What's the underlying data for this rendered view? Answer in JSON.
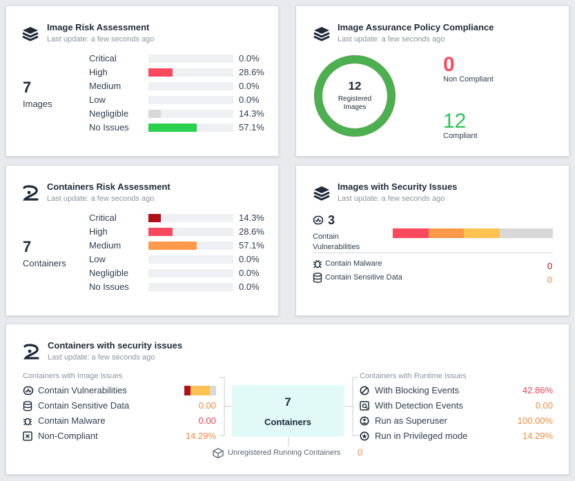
{
  "image_risk": {
    "title": "Image Risk Assessment",
    "subtitle": "Last update: a few seconds ago",
    "total": "7",
    "total_label": "Images",
    "rows": [
      {
        "label": "Critical",
        "pct": "0.0%",
        "value": 0.0,
        "color": "#b30f1b"
      },
      {
        "label": "High",
        "pct": "28.6%",
        "value": 28.6,
        "color": "#f94a5d"
      },
      {
        "label": "Medium",
        "pct": "0.0%",
        "value": 0.0,
        "color": "#ff9a4d"
      },
      {
        "label": "Low",
        "pct": "0.0%",
        "value": 0.0,
        "color": "#ffc353"
      },
      {
        "label": "Negligible",
        "pct": "14.3%",
        "value": 14.3,
        "color": "#d8d8d8"
      },
      {
        "label": "No Issues",
        "pct": "57.1%",
        "value": 57.1,
        "color": "#2cd04f"
      }
    ]
  },
  "policy": {
    "title": "Image Assurance Policy Compliance",
    "subtitle": "Last update: a few seconds ago",
    "donut_number": "12",
    "donut_label": "Registered Images",
    "non_compliant_value": "0",
    "non_compliant_label": "Non Compliant",
    "compliant_value": "12",
    "compliant_label": "Compliant",
    "compliant_fraction": 1.0,
    "colors": {
      "compliant": "#4caf50",
      "non_compliant": "#f94a5d"
    }
  },
  "container_risk": {
    "title": "Containers Risk Assessment",
    "subtitle": "Last update: a few seconds ago",
    "total": "7",
    "total_label": "Containers",
    "rows": [
      {
        "label": "Critical",
        "pct": "14.3%",
        "value": 14.3,
        "color": "#b30f1b"
      },
      {
        "label": "High",
        "pct": "28.6%",
        "value": 28.6,
        "color": "#f94a5d"
      },
      {
        "label": "Medium",
        "pct": "57.1%",
        "value": 57.1,
        "color": "#ff9a4d"
      },
      {
        "label": "Low",
        "pct": "0.0%",
        "value": 0.0,
        "color": "#ffc353"
      },
      {
        "label": "Negligible",
        "pct": "0.0%",
        "value": 0.0,
        "color": "#d8d8d8"
      },
      {
        "label": "No Issues",
        "pct": "0.0%",
        "value": 0.0,
        "color": "#2cd04f"
      }
    ]
  },
  "images_security": {
    "title": "Images with Security Issues",
    "subtitle": "Last update: a few seconds ago",
    "vuln_count": "3",
    "vuln_label": "Contain Vulnerabilities",
    "vuln_bar": [
      {
        "value": 1,
        "color": "#f94a5d"
      },
      {
        "value": 1,
        "color": "#ff9a4d"
      },
      {
        "value": 1,
        "color": "#ffc353"
      },
      {
        "value": 1.5,
        "color": "#d8d8d8"
      }
    ],
    "malware_label": "Contain Malware",
    "malware_value": "0",
    "sensitive_label": "Contain Sensitive Data",
    "sensitive_value": "0"
  },
  "containers_security": {
    "title": "Containers with security issues",
    "subtitle": "Last update: a few seconds ago",
    "left_header": "Containers with Image Issues",
    "left_rows": [
      {
        "label": "Contain Vulnerabilities",
        "icon": "vulnerability-icon"
      },
      {
        "label": "Contain Sensitive Data",
        "value": "0.00"
      },
      {
        "label": "Contain Malware",
        "value": "0.00"
      },
      {
        "label": "Non-Compliant",
        "value": "14.29%"
      }
    ],
    "vuln_mini_bar": [
      {
        "value": 1,
        "color": "#b30f1b"
      },
      {
        "value": 3,
        "color": "#ffc353"
      },
      {
        "value": 1,
        "color": "#d8d8d8"
      }
    ],
    "center_number": "7",
    "center_label": "Containers",
    "right_header": "Containers with Runtime Issues",
    "right_rows": [
      {
        "label": "With Blocking Events",
        "value": "42.86%"
      },
      {
        "label": "With Detection Events",
        "value": "0.00"
      },
      {
        "label": "Run as Superuser",
        "value": "100.00%"
      },
      {
        "label": "Run in Privileged mode",
        "value": "14.29%"
      }
    ],
    "unregistered_label": "Unregistered Running Containers",
    "unregistered_value": "0"
  }
}
